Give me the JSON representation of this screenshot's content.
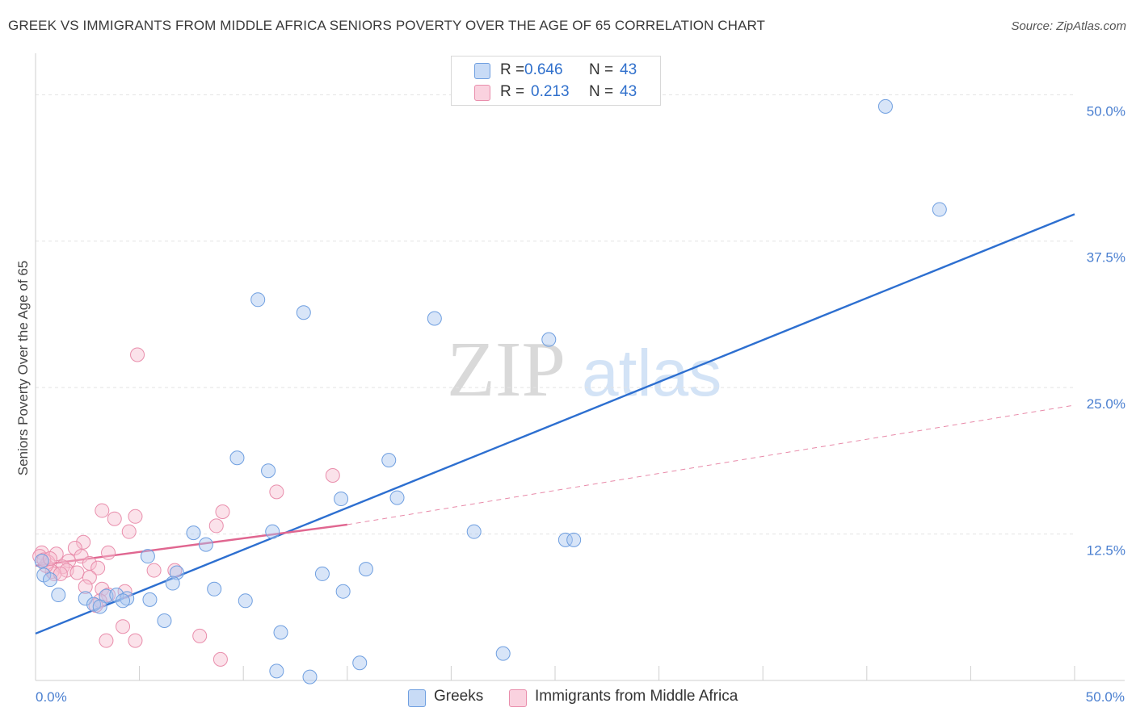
{
  "title": "GREEK VS IMMIGRANTS FROM MIDDLE AFRICA SENIORS POVERTY OVER THE AGE OF 65 CORRELATION CHART",
  "source": "Source: ZipAtlas.com",
  "watermark": {
    "zip": "ZIP",
    "atlas": "atlas"
  },
  "legend": {
    "series": [
      {
        "name": "Greeks",
        "r_label": "R =",
        "r_value": "0.646",
        "n_label": "N =",
        "n_value": "43",
        "color": "#a9c6ef",
        "stroke": "#6f9fe0"
      },
      {
        "name": "Immigrants from Middle Africa",
        "r_label": "R =",
        "r_value": "0.213",
        "n_label": "N =",
        "n_value": "43",
        "color": "#f6bfd1",
        "stroke": "#e98eac"
      }
    ]
  },
  "chart_data": {
    "type": "scatter",
    "ylabel": "Seniors Poverty Over the Age of 65",
    "xlim": [
      0,
      50
    ],
    "ylim": [
      0,
      50
    ],
    "x_tick_labels": [
      "0.0%",
      "50.0%"
    ],
    "y_ticks": [
      {
        "value": 12.5,
        "label": "12.5%"
      },
      {
        "value": 25,
        "label": "25.0%"
      },
      {
        "value": 37.5,
        "label": "37.5%"
      },
      {
        "value": 50,
        "label": "50.0%"
      }
    ],
    "grid": "horizontal dashed",
    "series": [
      {
        "name": "Greeks",
        "color": "#4a7fd0",
        "fill": "#a9c6ef",
        "trend": {
          "x": [
            0,
            50
          ],
          "y": [
            4.0,
            39.8
          ],
          "style": "solid",
          "color": "#2d6fd0"
        },
        "points": [
          [
            40.9,
            49.0
          ],
          [
            43.5,
            40.2
          ],
          [
            10.7,
            32.5
          ],
          [
            12.9,
            31.4
          ],
          [
            19.2,
            30.9
          ],
          [
            24.7,
            29.1
          ],
          [
            9.7,
            19.0
          ],
          [
            11.2,
            17.9
          ],
          [
            17.0,
            18.8
          ],
          [
            14.7,
            15.5
          ],
          [
            17.4,
            15.6
          ],
          [
            7.6,
            12.6
          ],
          [
            11.4,
            12.7
          ],
          [
            21.1,
            12.7
          ],
          [
            25.5,
            12.0
          ],
          [
            25.9,
            12.0
          ],
          [
            8.2,
            11.6
          ],
          [
            5.4,
            10.6
          ],
          [
            6.8,
            9.2
          ],
          [
            13.8,
            9.1
          ],
          [
            15.9,
            9.5
          ],
          [
            6.6,
            8.3
          ],
          [
            8.6,
            7.8
          ],
          [
            14.8,
            7.6
          ],
          [
            1.1,
            7.3
          ],
          [
            2.4,
            7.0
          ],
          [
            3.4,
            7.2
          ],
          [
            3.9,
            7.3
          ],
          [
            2.8,
            6.5
          ],
          [
            3.1,
            6.3
          ],
          [
            4.4,
            7.0
          ],
          [
            4.2,
            6.8
          ],
          [
            5.5,
            6.9
          ],
          [
            10.1,
            6.8
          ],
          [
            6.2,
            5.1
          ],
          [
            11.8,
            4.1
          ],
          [
            0.4,
            9.0
          ],
          [
            0.7,
            8.6
          ],
          [
            0.3,
            10.2
          ],
          [
            22.5,
            2.3
          ],
          [
            15.6,
            1.5
          ],
          [
            11.6,
            0.8
          ],
          [
            13.2,
            0.3
          ]
        ]
      },
      {
        "name": "Immigrants from Middle Africa",
        "color": "#e37499",
        "fill": "#f6bfd1",
        "trend_solid": {
          "x": [
            0,
            15
          ],
          "y": [
            9.8,
            13.3
          ],
          "style": "solid",
          "color": "#e06690"
        },
        "trend_dashed": {
          "x": [
            15,
            50
          ],
          "y": [
            13.3,
            23.5
          ],
          "style": "dashed",
          "color": "#e88aa9"
        },
        "points": [
          [
            4.9,
            27.8
          ],
          [
            14.3,
            17.5
          ],
          [
            11.6,
            16.1
          ],
          [
            3.2,
            14.5
          ],
          [
            4.8,
            14.0
          ],
          [
            9.0,
            14.4
          ],
          [
            3.8,
            13.8
          ],
          [
            8.7,
            13.2
          ],
          [
            4.5,
            12.7
          ],
          [
            2.3,
            11.8
          ],
          [
            1.9,
            11.3
          ],
          [
            3.5,
            10.9
          ],
          [
            2.2,
            10.6
          ],
          [
            1.6,
            10.2
          ],
          [
            2.6,
            10.0
          ],
          [
            1.0,
            10.8
          ],
          [
            0.3,
            10.9
          ],
          [
            0.6,
            10.1
          ],
          [
            1.3,
            9.7
          ],
          [
            1.5,
            9.4
          ],
          [
            0.8,
            9.3
          ],
          [
            0.9,
            9.1
          ],
          [
            2.0,
            9.2
          ],
          [
            3.0,
            9.6
          ],
          [
            5.7,
            9.4
          ],
          [
            6.7,
            9.4
          ],
          [
            2.6,
            8.8
          ],
          [
            1.2,
            9.1
          ],
          [
            0.5,
            9.8
          ],
          [
            2.4,
            8.0
          ],
          [
            3.2,
            7.8
          ],
          [
            4.3,
            7.6
          ],
          [
            3.5,
            7.3
          ],
          [
            3.1,
            6.8
          ],
          [
            2.9,
            6.4
          ],
          [
            4.2,
            4.6
          ],
          [
            7.9,
            3.8
          ],
          [
            3.4,
            3.4
          ],
          [
            4.8,
            3.4
          ],
          [
            8.9,
            1.8
          ],
          [
            0.2,
            10.6
          ],
          [
            0.4,
            10.3
          ],
          [
            0.7,
            10.4
          ]
        ]
      }
    ]
  }
}
